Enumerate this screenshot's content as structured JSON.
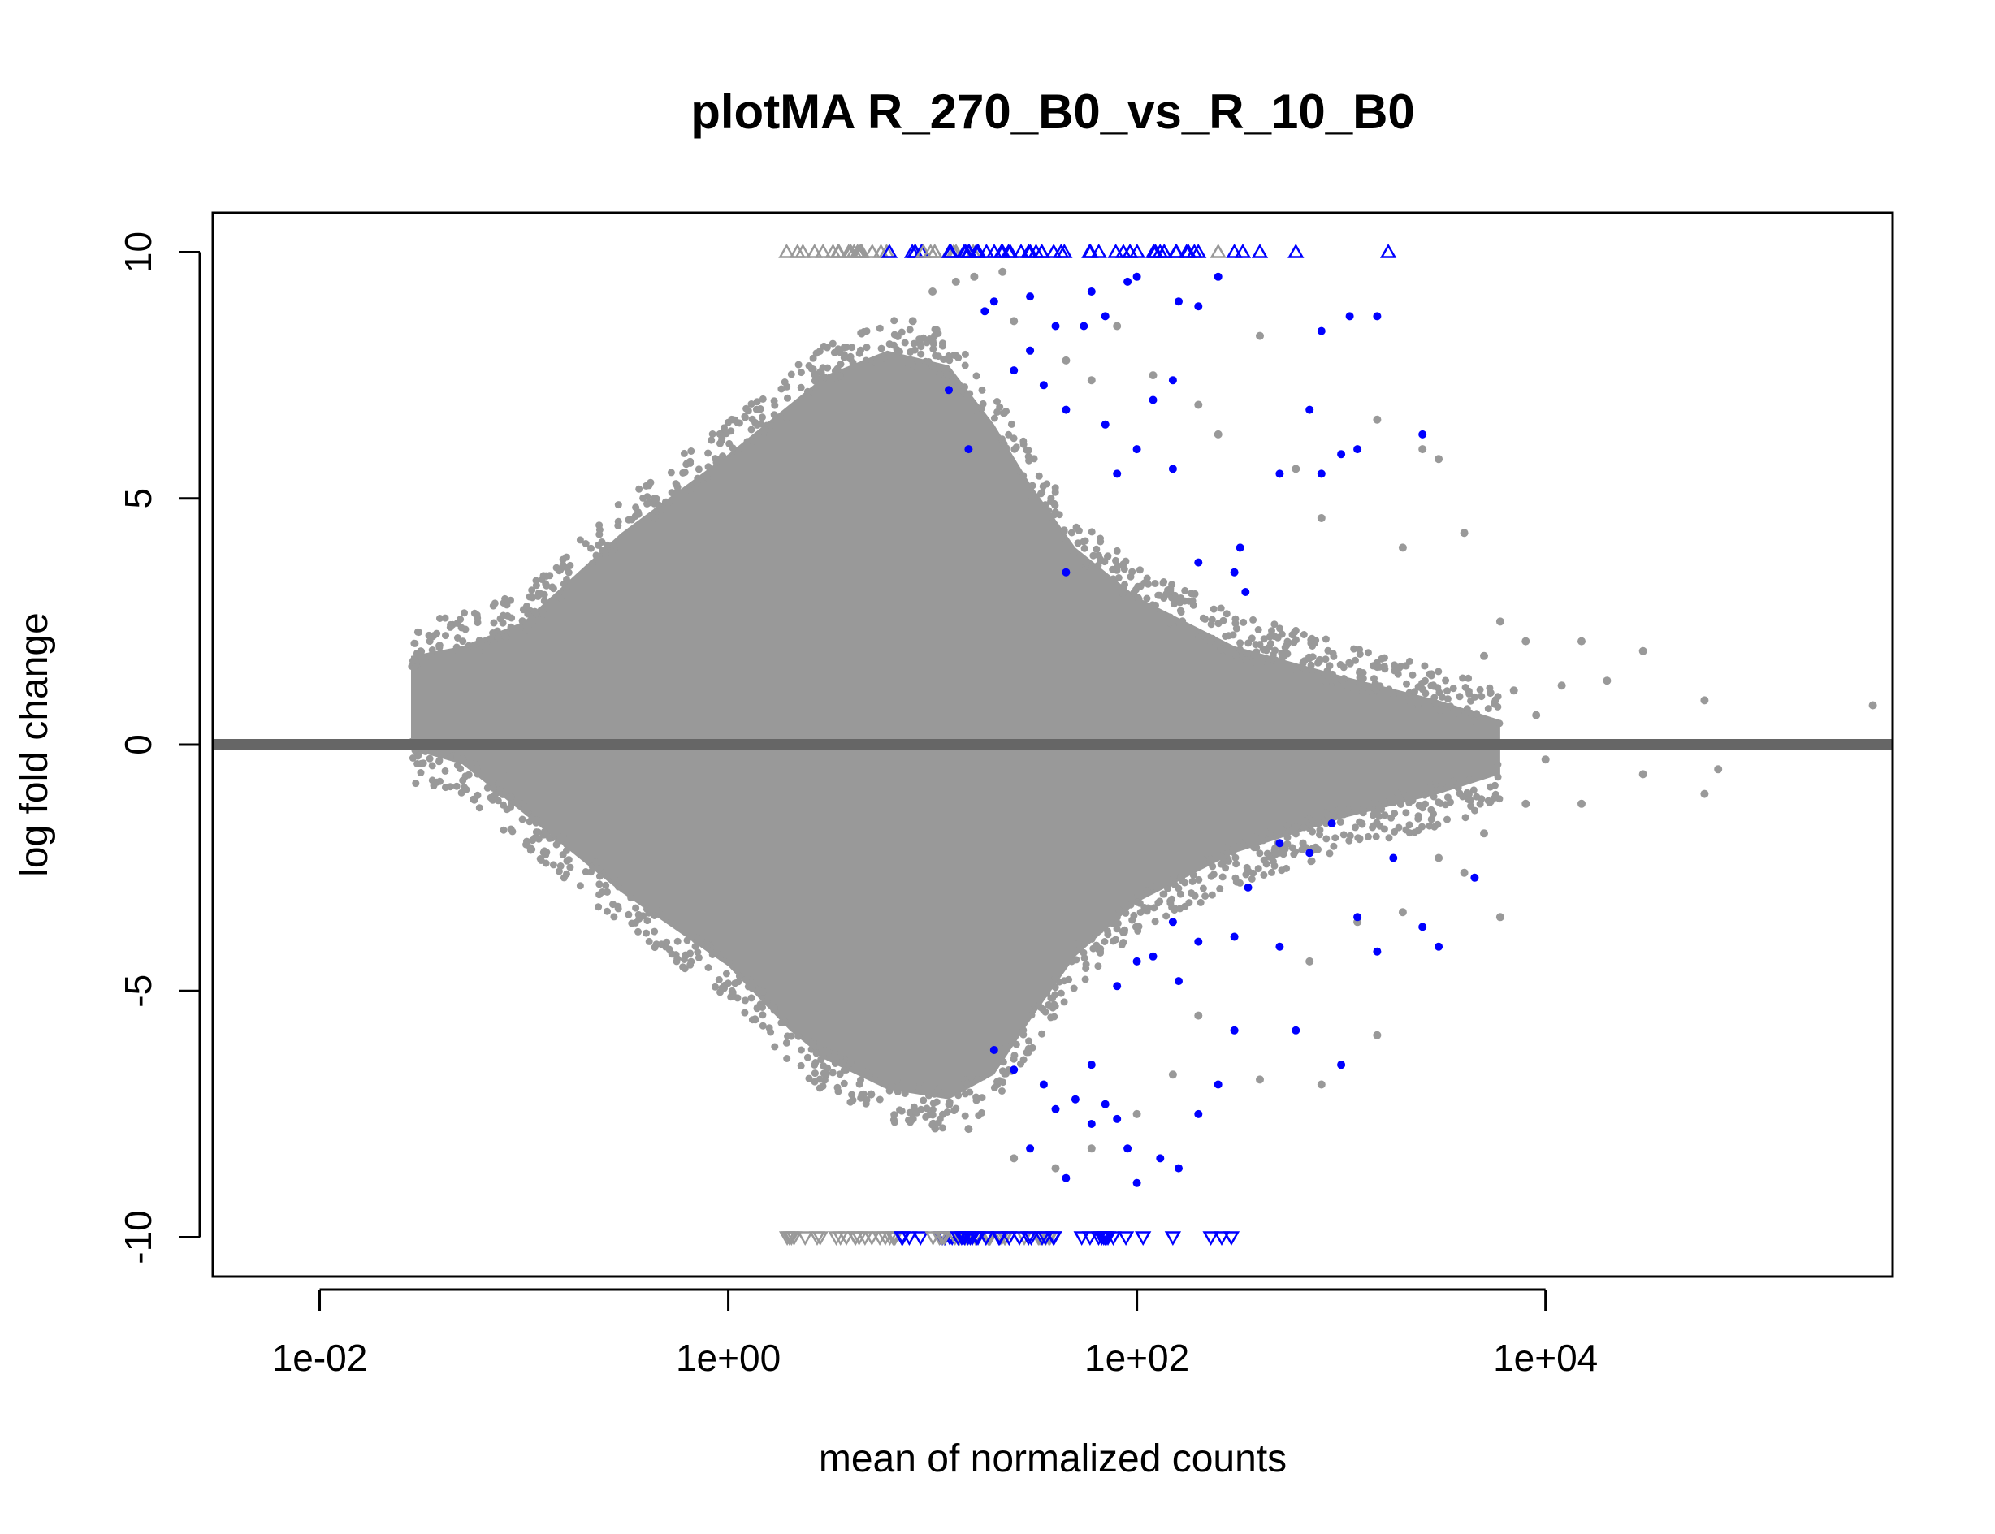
{
  "chart_data": {
    "type": "scatter",
    "title": "plotMA R_270_B0_vs_R_10_B0",
    "xlabel": "mean of normalized counts",
    "ylabel": "log fold change",
    "x_scale": "log10",
    "xlim": [
      0.003,
      500000
    ],
    "ylim": [
      -10.8,
      10.8
    ],
    "x_ticks": [
      0.01,
      1,
      100,
      10000
    ],
    "x_tick_labels": [
      "1e-02",
      "1e+00",
      "1e+02",
      "1e+04"
    ],
    "y_ticks": [
      10,
      5,
      0,
      -5,
      -10
    ],
    "y_tick_labels": [
      "10",
      "5",
      "0",
      "-5",
      "-10"
    ],
    "reference_line": {
      "y": 0,
      "color": "#666666"
    },
    "colors": {
      "not_significant": "#999999",
      "significant": "#0000ff"
    },
    "cloud_envelope": {
      "upper": [
        [
          0.028,
          1.8
        ],
        [
          0.05,
          2.0
        ],
        [
          0.1,
          2.5
        ],
        [
          0.3,
          4.3
        ],
        [
          1,
          5.9
        ],
        [
          3,
          7.5
        ],
        [
          6,
          8.0
        ],
        [
          12,
          7.7
        ],
        [
          20,
          6.5
        ],
        [
          30,
          5.3
        ],
        [
          50,
          4.0
        ],
        [
          100,
          3.0
        ],
        [
          300,
          2.0
        ],
        [
          1000,
          1.4
        ],
        [
          3000,
          0.9
        ],
        [
          6000,
          0.5
        ]
      ],
      "lower": [
        [
          0.028,
          -0.1
        ],
        [
          0.05,
          -0.4
        ],
        [
          0.1,
          -1.4
        ],
        [
          0.3,
          -3.0
        ],
        [
          1,
          -4.5
        ],
        [
          2,
          -5.8
        ],
        [
          3,
          -6.4
        ],
        [
          6,
          -7.0
        ],
        [
          12,
          -7.2
        ],
        [
          20,
          -6.7
        ],
        [
          30,
          -5.6
        ],
        [
          50,
          -4.3
        ],
        [
          100,
          -3.2
        ],
        [
          300,
          -2.2
        ],
        [
          1000,
          -1.5
        ],
        [
          3000,
          -1.0
        ],
        [
          6000,
          -0.6
        ]
      ]
    },
    "series": [
      {
        "name": "not significant",
        "color": "#999999",
        "points": [
          [
            0.02,
            0.0
          ],
          [
            0.035,
            1.8
          ],
          [
            0.06,
            1.9
          ],
          [
            0.07,
            0.9
          ],
          [
            0.05,
            -0.3
          ],
          [
            0.08,
            -0.5
          ],
          [
            8,
            8.6
          ],
          [
            10,
            9.2
          ],
          [
            13,
            9.4
          ],
          [
            16,
            9.5
          ],
          [
            22,
            9.6
          ],
          [
            25,
            8.6
          ],
          [
            30,
            8.0
          ],
          [
            45,
            7.8
          ],
          [
            60,
            7.4
          ],
          [
            80,
            8.5
          ],
          [
            120,
            7.5
          ],
          [
            200,
            6.9
          ],
          [
            250,
            6.3
          ],
          [
            400,
            8.3
          ],
          [
            600,
            5.6
          ],
          [
            800,
            4.6
          ],
          [
            1500,
            6.6
          ],
          [
            2500,
            6.0
          ],
          [
            3000,
            5.8
          ],
          [
            4000,
            4.3
          ],
          [
            2000,
            4.0
          ],
          [
            6000,
            2.5
          ],
          [
            8000,
            2.1
          ],
          [
            15000,
            2.1
          ],
          [
            30000,
            1.9
          ],
          [
            60000,
            0.9
          ],
          [
            400000,
            0.8
          ],
          [
            12000,
            1.2
          ],
          [
            20000,
            1.3
          ],
          [
            9000,
            0.6
          ],
          [
            5000,
            1.8
          ],
          [
            7000,
            1.1
          ],
          [
            3,
            -6.7
          ],
          [
            5,
            -7.1
          ],
          [
            8,
            -7.6
          ],
          [
            15,
            -7.8
          ],
          [
            25,
            -8.4
          ],
          [
            40,
            -8.6
          ],
          [
            60,
            -8.2
          ],
          [
            100,
            -7.5
          ],
          [
            150,
            -6.7
          ],
          [
            200,
            -5.5
          ],
          [
            400,
            -6.8
          ],
          [
            800,
            -6.9
          ],
          [
            1500,
            -5.9
          ],
          [
            1000,
            -6.5
          ],
          [
            2000,
            -3.4
          ],
          [
            4000,
            -2.6
          ],
          [
            6000,
            -3.5
          ],
          [
            8000,
            -1.2
          ],
          [
            15000,
            -1.2
          ],
          [
            30000,
            -0.6
          ],
          [
            70000,
            -0.5
          ],
          [
            60000,
            -1.0
          ],
          [
            10000,
            -0.3
          ],
          [
            5000,
            -1.8
          ],
          [
            3000,
            -2.3
          ],
          [
            1200,
            -3.6
          ],
          [
            700,
            -4.4
          ]
        ]
      },
      {
        "name": "significant",
        "color": "#0000ff",
        "points": [
          [
            20,
            9.0
          ],
          [
            30,
            9.1
          ],
          [
            40,
            8.5
          ],
          [
            55,
            8.5
          ],
          [
            60,
            9.2
          ],
          [
            70,
            8.7
          ],
          [
            90,
            9.4
          ],
          [
            100,
            9.5
          ],
          [
            160,
            9.0
          ],
          [
            200,
            8.9
          ],
          [
            250,
            9.5
          ],
          [
            18,
            8.8
          ],
          [
            30,
            8.0
          ],
          [
            35,
            7.3
          ],
          [
            45,
            6.8
          ],
          [
            25,
            7.6
          ],
          [
            12,
            7.2
          ],
          [
            120,
            7.0
          ],
          [
            150,
            7.4
          ],
          [
            70,
            6.5
          ],
          [
            100,
            6.0
          ],
          [
            80,
            5.5
          ],
          [
            150,
            5.6
          ],
          [
            200,
            3.7
          ],
          [
            300,
            3.5
          ],
          [
            320,
            4.0
          ],
          [
            340,
            3.1
          ],
          [
            500,
            5.5
          ],
          [
            700,
            6.8
          ],
          [
            800,
            5.5
          ],
          [
            1000,
            5.9
          ],
          [
            1200,
            6.0
          ],
          [
            2500,
            6.3
          ],
          [
            1500,
            8.7
          ],
          [
            800,
            8.4
          ],
          [
            1100,
            8.7
          ],
          [
            45,
            3.5
          ],
          [
            15,
            6.0
          ],
          [
            20,
            -6.2
          ],
          [
            25,
            -6.6
          ],
          [
            35,
            -6.9
          ],
          [
            40,
            -7.4
          ],
          [
            50,
            -7.2
          ],
          [
            60,
            -7.7
          ],
          [
            70,
            -7.3
          ],
          [
            80,
            -7.6
          ],
          [
            90,
            -8.2
          ],
          [
            100,
            -8.9
          ],
          [
            130,
            -8.4
          ],
          [
            160,
            -8.6
          ],
          [
            200,
            -7.5
          ],
          [
            250,
            -6.9
          ],
          [
            300,
            -5.8
          ],
          [
            30,
            -8.2
          ],
          [
            45,
            -8.8
          ],
          [
            60,
            -6.5
          ],
          [
            80,
            -4.9
          ],
          [
            100,
            -4.4
          ],
          [
            120,
            -4.3
          ],
          [
            150,
            -3.6
          ],
          [
            160,
            -4.8
          ],
          [
            200,
            -4.0
          ],
          [
            300,
            -3.9
          ],
          [
            350,
            -2.9
          ],
          [
            500,
            -2.0
          ],
          [
            700,
            -2.2
          ],
          [
            500,
            -4.1
          ],
          [
            600,
            -5.8
          ],
          [
            1000,
            -6.5
          ],
          [
            1500,
            -4.2
          ],
          [
            1800,
            -2.3
          ],
          [
            2500,
            -3.7
          ],
          [
            3000,
            -4.1
          ],
          [
            4500,
            -2.7
          ],
          [
            1200,
            -3.5
          ],
          [
            900,
            -1.6
          ]
        ]
      }
    ],
    "out_of_range_points": {
      "upper_y": 10,
      "lower_y": -10,
      "upper": [
        {
          "range": [
            1.8,
            6
          ],
          "color": "#999999"
        },
        {
          "range": [
            6,
            9
          ],
          "color": "#0000ff"
        },
        {
          "range": [
            9,
            16
          ],
          "color": "#999999"
        },
        {
          "range": [
            12,
            200
          ],
          "color": "#0000ff"
        },
        {
          "x": 250,
          "color": "#999999"
        },
        {
          "x": 300,
          "color": "#0000ff"
        },
        {
          "x": 330,
          "color": "#0000ff"
        },
        {
          "x": 400,
          "color": "#0000ff"
        },
        {
          "x": 600,
          "color": "#0000ff"
        },
        {
          "x": 1700,
          "color": "#0000ff"
        }
      ],
      "lower": [
        {
          "range": [
            1.8,
            7
          ],
          "color": "#999999"
        },
        {
          "range": [
            7,
            13
          ],
          "color": "#0000ff"
        },
        {
          "range": [
            8,
            40
          ],
          "color": "#999999"
        },
        {
          "range": [
            13,
            110
          ],
          "color": "#0000ff"
        },
        {
          "x": 150,
          "color": "#0000ff"
        },
        {
          "x": 230,
          "color": "#0000ff"
        },
        {
          "x": 260,
          "color": "#0000ff"
        },
        {
          "x": 290,
          "color": "#0000ff"
        }
      ]
    }
  }
}
